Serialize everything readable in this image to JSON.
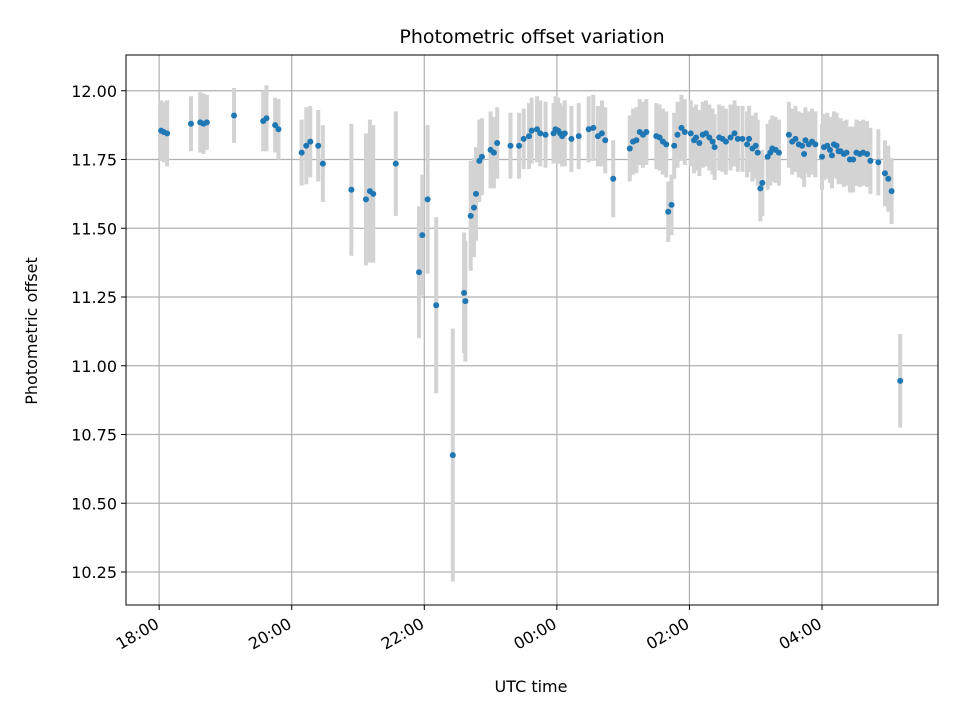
{
  "chart_data": {
    "type": "scatter",
    "title": "Photometric offset variation",
    "xlabel": "UTC time",
    "ylabel": "Photometric offset",
    "x_unit": "hours (UTC, continuing past midnight as 24+)",
    "xlim": [
      17.5,
      29.75
    ],
    "ylim": [
      10.13,
      12.13
    ],
    "x_ticks": [
      {
        "value": 18,
        "label": "18:00"
      },
      {
        "value": 20,
        "label": "20:00"
      },
      {
        "value": 22,
        "label": "22:00"
      },
      {
        "value": 24,
        "label": "00:00"
      },
      {
        "value": 26,
        "label": "02:00"
      },
      {
        "value": 28,
        "label": "04:00"
      }
    ],
    "y_ticks": [
      {
        "value": 10.25,
        "label": "10.25"
      },
      {
        "value": 10.5,
        "label": "10.50"
      },
      {
        "value": 10.75,
        "label": "10.75"
      },
      {
        "value": 11.0,
        "label": "11.00"
      },
      {
        "value": 11.25,
        "label": "11.25"
      },
      {
        "value": 11.5,
        "label": "11.50"
      },
      {
        "value": 11.75,
        "label": "11.75"
      },
      {
        "value": 12.0,
        "label": "12.00"
      }
    ],
    "grid": true,
    "colors": {
      "points": "#1f77b4",
      "error_bars": "#d3d3d3",
      "grid": "#b0b0b0"
    },
    "points": [
      [
        18.03,
        11.855,
        0.11
      ],
      [
        18.07,
        11.85,
        0.11
      ],
      [
        18.12,
        11.845,
        0.12
      ],
      [
        18.48,
        11.88,
        0.1
      ],
      [
        18.62,
        11.885,
        0.11
      ],
      [
        18.67,
        11.88,
        0.11
      ],
      [
        18.72,
        11.885,
        0.1
      ],
      [
        19.13,
        11.91,
        0.1
      ],
      [
        19.57,
        11.89,
        0.11
      ],
      [
        19.62,
        11.9,
        0.12
      ],
      [
        19.75,
        11.875,
        0.1
      ],
      [
        19.8,
        11.86,
        0.11
      ],
      [
        20.15,
        11.775,
        0.12
      ],
      [
        20.22,
        11.8,
        0.14
      ],
      [
        20.28,
        11.815,
        0.13
      ],
      [
        20.4,
        11.8,
        0.13
      ],
      [
        20.47,
        11.735,
        0.14
      ],
      [
        20.9,
        11.64,
        0.24
      ],
      [
        21.12,
        11.605,
        0.24
      ],
      [
        21.18,
        11.635,
        0.26
      ],
      [
        21.23,
        11.625,
        0.25
      ],
      [
        21.57,
        11.735,
        0.19
      ],
      [
        21.92,
        11.34,
        0.24
      ],
      [
        21.97,
        11.475,
        0.22
      ],
      [
        22.05,
        11.605,
        0.27
      ],
      [
        22.18,
        11.22,
        0.32
      ],
      [
        22.43,
        10.675,
        0.46
      ],
      [
        22.6,
        11.265,
        0.22
      ],
      [
        22.62,
        11.235,
        0.22
      ],
      [
        22.7,
        11.545,
        0.2
      ],
      [
        22.75,
        11.575,
        0.18
      ],
      [
        22.78,
        11.625,
        0.17
      ],
      [
        22.83,
        11.745,
        0.15
      ],
      [
        22.87,
        11.76,
        0.14
      ],
      [
        23.0,
        11.785,
        0.14
      ],
      [
        23.05,
        11.775,
        0.13
      ],
      [
        23.1,
        11.81,
        0.13
      ],
      [
        23.3,
        11.8,
        0.12
      ],
      [
        23.43,
        11.8,
        0.12
      ],
      [
        23.5,
        11.825,
        0.11
      ],
      [
        23.58,
        11.835,
        0.12
      ],
      [
        23.62,
        11.855,
        0.12
      ],
      [
        23.7,
        11.86,
        0.12
      ],
      [
        23.75,
        11.845,
        0.12
      ],
      [
        23.83,
        11.84,
        0.12
      ],
      [
        23.95,
        11.845,
        0.11
      ],
      [
        23.98,
        11.86,
        0.12
      ],
      [
        24.02,
        11.855,
        0.12
      ],
      [
        24.05,
        11.845,
        0.11
      ],
      [
        24.08,
        11.835,
        0.11
      ],
      [
        24.12,
        11.845,
        0.12
      ],
      [
        24.22,
        11.825,
        0.12
      ],
      [
        24.33,
        11.835,
        0.12
      ],
      [
        24.48,
        11.86,
        0.12
      ],
      [
        24.55,
        11.865,
        0.12
      ],
      [
        24.62,
        11.835,
        0.11
      ],
      [
        24.68,
        11.845,
        0.12
      ],
      [
        24.73,
        11.82,
        0.12
      ],
      [
        24.85,
        11.68,
        0.14
      ],
      [
        25.1,
        11.79,
        0.12
      ],
      [
        25.15,
        11.815,
        0.12
      ],
      [
        25.2,
        11.82,
        0.12
      ],
      [
        25.25,
        11.85,
        0.12
      ],
      [
        25.3,
        11.84,
        0.12
      ],
      [
        25.35,
        11.85,
        0.12
      ],
      [
        25.5,
        11.835,
        0.12
      ],
      [
        25.55,
        11.83,
        0.12
      ],
      [
        25.6,
        11.815,
        0.12
      ],
      [
        25.65,
        11.805,
        0.12
      ],
      [
        25.68,
        11.56,
        0.11
      ],
      [
        25.73,
        11.585,
        0.11
      ],
      [
        25.77,
        11.8,
        0.12
      ],
      [
        25.82,
        11.84,
        0.12
      ],
      [
        25.88,
        11.865,
        0.12
      ],
      [
        25.93,
        11.85,
        0.12
      ],
      [
        26.02,
        11.845,
        0.12
      ],
      [
        26.07,
        11.82,
        0.12
      ],
      [
        26.1,
        11.83,
        0.12
      ],
      [
        26.15,
        11.81,
        0.12
      ],
      [
        26.2,
        11.84,
        0.12
      ],
      [
        26.25,
        11.845,
        0.12
      ],
      [
        26.3,
        11.83,
        0.12
      ],
      [
        26.35,
        11.815,
        0.12
      ],
      [
        26.38,
        11.795,
        0.12
      ],
      [
        26.45,
        11.83,
        0.12
      ],
      [
        26.5,
        11.825,
        0.12
      ],
      [
        26.55,
        11.815,
        0.12
      ],
      [
        26.62,
        11.83,
        0.12
      ],
      [
        26.68,
        11.845,
        0.12
      ],
      [
        26.73,
        11.825,
        0.12
      ],
      [
        26.8,
        11.825,
        0.12
      ],
      [
        26.87,
        11.805,
        0.12
      ],
      [
        26.9,
        11.825,
        0.12
      ],
      [
        26.95,
        11.79,
        0.12
      ],
      [
        27.0,
        11.8,
        0.12
      ],
      [
        27.03,
        11.775,
        0.12
      ],
      [
        27.07,
        11.645,
        0.12
      ],
      [
        27.1,
        11.665,
        0.12
      ],
      [
        27.18,
        11.76,
        0.12
      ],
      [
        27.22,
        11.775,
        0.12
      ],
      [
        27.25,
        11.79,
        0.12
      ],
      [
        27.3,
        11.785,
        0.12
      ],
      [
        27.35,
        11.775,
        0.12
      ],
      [
        27.5,
        11.84,
        0.12
      ],
      [
        27.55,
        11.815,
        0.12
      ],
      [
        27.6,
        11.825,
        0.12
      ],
      [
        27.65,
        11.805,
        0.12
      ],
      [
        27.7,
        11.8,
        0.12
      ],
      [
        27.73,
        11.77,
        0.12
      ],
      [
        27.75,
        11.82,
        0.12
      ],
      [
        27.8,
        11.805,
        0.12
      ],
      [
        27.85,
        11.815,
        0.12
      ],
      [
        27.9,
        11.805,
        0.12
      ],
      [
        28.0,
        11.76,
        0.12
      ],
      [
        28.03,
        11.795,
        0.12
      ],
      [
        28.08,
        11.8,
        0.12
      ],
      [
        28.12,
        11.785,
        0.12
      ],
      [
        28.15,
        11.765,
        0.12
      ],
      [
        28.18,
        11.805,
        0.12
      ],
      [
        28.22,
        11.8,
        0.12
      ],
      [
        28.25,
        11.78,
        0.12
      ],
      [
        28.28,
        11.78,
        0.12
      ],
      [
        28.33,
        11.77,
        0.12
      ],
      [
        28.37,
        11.775,
        0.12
      ],
      [
        28.42,
        11.75,
        0.12
      ],
      [
        28.47,
        11.75,
        0.12
      ],
      [
        28.52,
        11.775,
        0.12
      ],
      [
        28.57,
        11.77,
        0.12
      ],
      [
        28.62,
        11.775,
        0.12
      ],
      [
        28.68,
        11.77,
        0.12
      ],
      [
        28.73,
        11.745,
        0.12
      ],
      [
        28.85,
        11.74,
        0.12
      ],
      [
        28.95,
        11.7,
        0.12
      ],
      [
        29.0,
        11.68,
        0.12
      ],
      [
        29.05,
        11.635,
        0.12
      ],
      [
        29.18,
        10.945,
        0.17
      ]
    ]
  }
}
